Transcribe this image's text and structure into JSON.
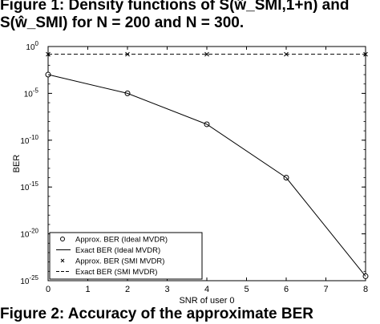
{
  "captions": {
    "top_line1": "Figure 1:  Density functions of S(ŵ_SMI,1+n) and",
    "top_line2": "S(ŵ_SMI) for N = 200 and N = 300.",
    "bottom": "Figure 2:  Accuracy of the approximate BER"
  },
  "chart_data": {
    "type": "line",
    "title": "",
    "xlabel": "SNR of user 0",
    "ylabel": "BER",
    "xlim": [
      0,
      8
    ],
    "ylim": [
      1e-25,
      1
    ],
    "yscale": "log",
    "grid": false,
    "legend_position": "bottom-left",
    "x_ticks": [
      "0",
      "1",
      "2",
      "3",
      "4",
      "5",
      "6",
      "7",
      "8"
    ],
    "y_ticks": [
      {
        "value": 1,
        "base": "10",
        "exp": "0"
      },
      {
        "value": 1e-05,
        "base": "10",
        "exp": "-5"
      },
      {
        "value": 1e-10,
        "base": "10",
        "exp": "-10"
      },
      {
        "value": 1e-15,
        "base": "10",
        "exp": "-15"
      },
      {
        "value": 1e-20,
        "base": "10",
        "exp": "-20"
      },
      {
        "value": 1e-25,
        "base": "10",
        "exp": "-25"
      }
    ],
    "series": [
      {
        "name": "Approx. BER (Ideal MVDR)",
        "style": "circle-markers",
        "x": [
          0,
          2,
          4,
          6,
          8
        ],
        "y": [
          0.001,
          1e-05,
          5e-09,
          1e-14,
          3e-25
        ]
      },
      {
        "name": "Exact BER (Ideal MVDR)",
        "style": "solid",
        "x": [
          0,
          2,
          4,
          6,
          8
        ],
        "y": [
          0.001,
          1e-05,
          5e-09,
          1e-14,
          3e-25
        ]
      },
      {
        "name": "Approx. BER (SMI MVDR)",
        "style": "x-markers",
        "x": [
          0,
          2,
          4,
          6,
          8
        ],
        "y": [
          0.15,
          0.15,
          0.15,
          0.15,
          0.15
        ]
      },
      {
        "name": "Exact BER (SMI MVDR)",
        "style": "dashed",
        "x": [
          0,
          8
        ],
        "y": [
          0.15,
          0.15
        ]
      }
    ]
  }
}
